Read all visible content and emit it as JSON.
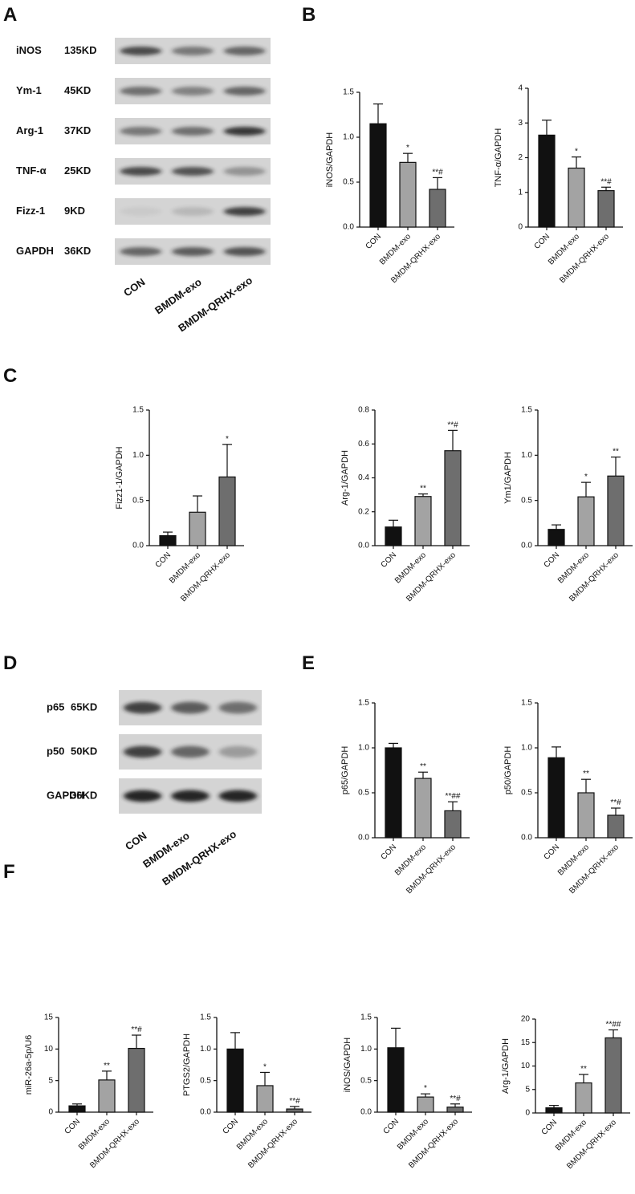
{
  "panel_labels": [
    "A",
    "B",
    "C",
    "D",
    "E",
    "F"
  ],
  "blot_a": {
    "rows": [
      {
        "protein": "iNOS",
        "size": "135KD"
      },
      {
        "protein": "Ym-1",
        "size": "45KD"
      },
      {
        "protein": "Arg-1",
        "size": "37KD"
      },
      {
        "protein": "TNF-α",
        "size": "25KD"
      },
      {
        "protein": "Fizz-1",
        "size": "9KD"
      },
      {
        "protein": "GAPDH",
        "size": "36KD"
      }
    ],
    "lanes": [
      "CON",
      "BMDM-exo",
      "BMDM-QRHX-exo"
    ]
  },
  "blot_d": {
    "rows": [
      {
        "protein": "p65",
        "size": "65KD"
      },
      {
        "protein": "p50",
        "size": "50KD"
      },
      {
        "protein": "GAPDH",
        "size": "36KD"
      }
    ],
    "lanes": [
      "CON",
      "BMDM-exo",
      "BMDM-QRHX-exo"
    ]
  },
  "chart_data": [
    {
      "type": "bar",
      "ylabel": "iNOS/GAPDH",
      "categories": [
        "CON",
        "BMDM-exo",
        "BMDM-QRHX-exo"
      ],
      "values": [
        1.15,
        0.72,
        0.42
      ],
      "errors": [
        0.22,
        0.1,
        0.13
      ],
      "significance": [
        null,
        "*",
        "**#"
      ],
      "colors": [
        "#111111",
        "#a3a3a3",
        "#6e6e6e"
      ],
      "ylim": [
        0,
        1.5
      ],
      "yticks": [
        {
          "value": 0,
          "label": "0.0"
        },
        0.5,
        {
          "value": 1,
          "label": "1.0"
        },
        1.5
      ]
    },
    {
      "type": "bar",
      "ylabel": "TNF-α/GAPDH",
      "categories": [
        "CON",
        "BMDM-exo",
        "BMDM-QRHX-exo"
      ],
      "values": [
        2.65,
        1.7,
        1.05
      ],
      "errors": [
        0.43,
        0.32,
        0.1
      ],
      "significance": [
        null,
        "*",
        "**#"
      ],
      "colors": [
        "#111111",
        "#a3a3a3",
        "#6e6e6e"
      ],
      "ylim": [
        0,
        4
      ],
      "yticks": [
        0,
        1,
        2,
        3,
        4
      ]
    },
    {
      "type": "bar",
      "ylabel": "Fizz1-1/GAPDH",
      "categories": [
        "CON",
        "BMDM-exo",
        "BMDM-QRHX-exo"
      ],
      "values": [
        0.11,
        0.37,
        0.76
      ],
      "errors": [
        0.04,
        0.18,
        0.36
      ],
      "significance": [
        null,
        null,
        "*"
      ],
      "colors": [
        "#111111",
        "#a3a3a3",
        "#6e6e6e"
      ],
      "ylim": [
        0,
        1.5
      ],
      "yticks": [
        {
          "value": 0,
          "label": "0.0"
        },
        0.5,
        {
          "value": 1,
          "label": "1.0"
        },
        1.5
      ]
    },
    {
      "type": "bar",
      "ylabel": "Arg-1/GAPDH",
      "categories": [
        "CON",
        "BMDM-exo",
        "BMDM-QRHX-exo"
      ],
      "values": [
        0.11,
        0.29,
        0.56
      ],
      "errors": [
        0.04,
        0.015,
        0.12
      ],
      "significance": [
        null,
        "**",
        "**#"
      ],
      "colors": [
        "#111111",
        "#a3a3a3",
        "#6e6e6e"
      ],
      "ylim": [
        0,
        0.8
      ],
      "yticks": [
        {
          "value": 0,
          "label": "0.0"
        },
        0.2,
        0.4,
        0.6,
        0.8
      ]
    },
    {
      "type": "bar",
      "ylabel": "Ym1/GAPDH",
      "categories": [
        "CON",
        "BMDM-exo",
        "BMDM-QRHX-exo"
      ],
      "values": [
        0.18,
        0.54,
        0.77
      ],
      "errors": [
        0.05,
        0.16,
        0.21
      ],
      "significance": [
        null,
        "*",
        "**"
      ],
      "colors": [
        "#111111",
        "#a3a3a3",
        "#6e6e6e"
      ],
      "ylim": [
        0,
        1.5
      ],
      "yticks": [
        {
          "value": 0,
          "label": "0.0"
        },
        0.5,
        {
          "value": 1,
          "label": "1.0"
        },
        1.5
      ]
    },
    {
      "type": "bar",
      "ylabel": "p65/GAPDH",
      "categories": [
        "CON",
        "BMDM-exo",
        "BMDM-QRHX-exo"
      ],
      "values": [
        1.0,
        0.66,
        0.3
      ],
      "errors": [
        0.05,
        0.07,
        0.1
      ],
      "significance": [
        null,
        "**",
        "**##"
      ],
      "colors": [
        "#111111",
        "#a3a3a3",
        "#6e6e6e"
      ],
      "ylim": [
        0,
        1.5
      ],
      "yticks": [
        {
          "value": 0,
          "label": "0.0"
        },
        0.5,
        {
          "value": 1,
          "label": "1.0"
        },
        1.5
      ]
    },
    {
      "type": "bar",
      "ylabel": "p50/GAPDH",
      "categories": [
        "CON",
        "BMDM-exo",
        "BMDM-QRHX-exo"
      ],
      "values": [
        0.89,
        0.5,
        0.25
      ],
      "errors": [
        0.12,
        0.15,
        0.08
      ],
      "significance": [
        null,
        "**",
        "**#"
      ],
      "colors": [
        "#111111",
        "#a3a3a3",
        "#6e6e6e"
      ],
      "ylim": [
        0,
        1.5
      ],
      "yticks": [
        {
          "value": 0,
          "label": "0.0"
        },
        0.5,
        {
          "value": 1,
          "label": "1.0"
        },
        1.5
      ]
    },
    {
      "type": "bar",
      "ylabel": "miR-26a-5p/U6",
      "categories": [
        "CON",
        "BMDM-exo",
        "BMDM-QRHX-exo"
      ],
      "values": [
        1.0,
        5.1,
        10.1
      ],
      "errors": [
        0.3,
        1.4,
        2.1
      ],
      "significance": [
        null,
        "**",
        "**#"
      ],
      "colors": [
        "#111111",
        "#a3a3a3",
        "#6e6e6e"
      ],
      "ylim": [
        0,
        15
      ],
      "yticks": [
        0,
        5,
        10,
        15
      ]
    },
    {
      "type": "bar",
      "ylabel": "PTGS2/GAPDH",
      "categories": [
        "CON",
        "BMDM-exo",
        "BMDM-QRHX-exo"
      ],
      "values": [
        1.0,
        0.42,
        0.05
      ],
      "errors": [
        0.26,
        0.21,
        0.04
      ],
      "significance": [
        null,
        "*",
        "**#"
      ],
      "colors": [
        "#111111",
        "#a3a3a3",
        "#6e6e6e"
      ],
      "ylim": [
        0,
        1.5
      ],
      "yticks": [
        {
          "value": 0,
          "label": "0.0"
        },
        0.5,
        {
          "value": 1,
          "label": "1.0"
        },
        1.5
      ]
    },
    {
      "type": "bar",
      "ylabel": "iNOS/GAPDH",
      "categories": [
        "CON",
        "BMDM-exo",
        "BMDM-QRHX-exo"
      ],
      "values": [
        1.02,
        0.24,
        0.08
      ],
      "errors": [
        0.31,
        0.05,
        0.05
      ],
      "significance": [
        null,
        "*",
        "**#"
      ],
      "colors": [
        "#111111",
        "#a3a3a3",
        "#6e6e6e"
      ],
      "ylim": [
        0,
        1.5
      ],
      "yticks": [
        {
          "value": 0,
          "label": "0.0"
        },
        0.5,
        {
          "value": 1,
          "label": "1.0"
        },
        1.5
      ]
    },
    {
      "type": "bar",
      "ylabel": "Arg-1/GAPDH",
      "categories": [
        "CON",
        "BMDM-exo",
        "BMDM-QRHX-exo"
      ],
      "values": [
        1.1,
        6.4,
        16.0
      ],
      "errors": [
        0.5,
        1.8,
        1.7
      ],
      "significance": [
        null,
        "**",
        "**##"
      ],
      "colors": [
        "#111111",
        "#a3a3a3",
        "#6e6e6e"
      ],
      "ylim": [
        0,
        20
      ],
      "yticks": [
        0,
        5,
        10,
        15,
        20
      ]
    }
  ]
}
